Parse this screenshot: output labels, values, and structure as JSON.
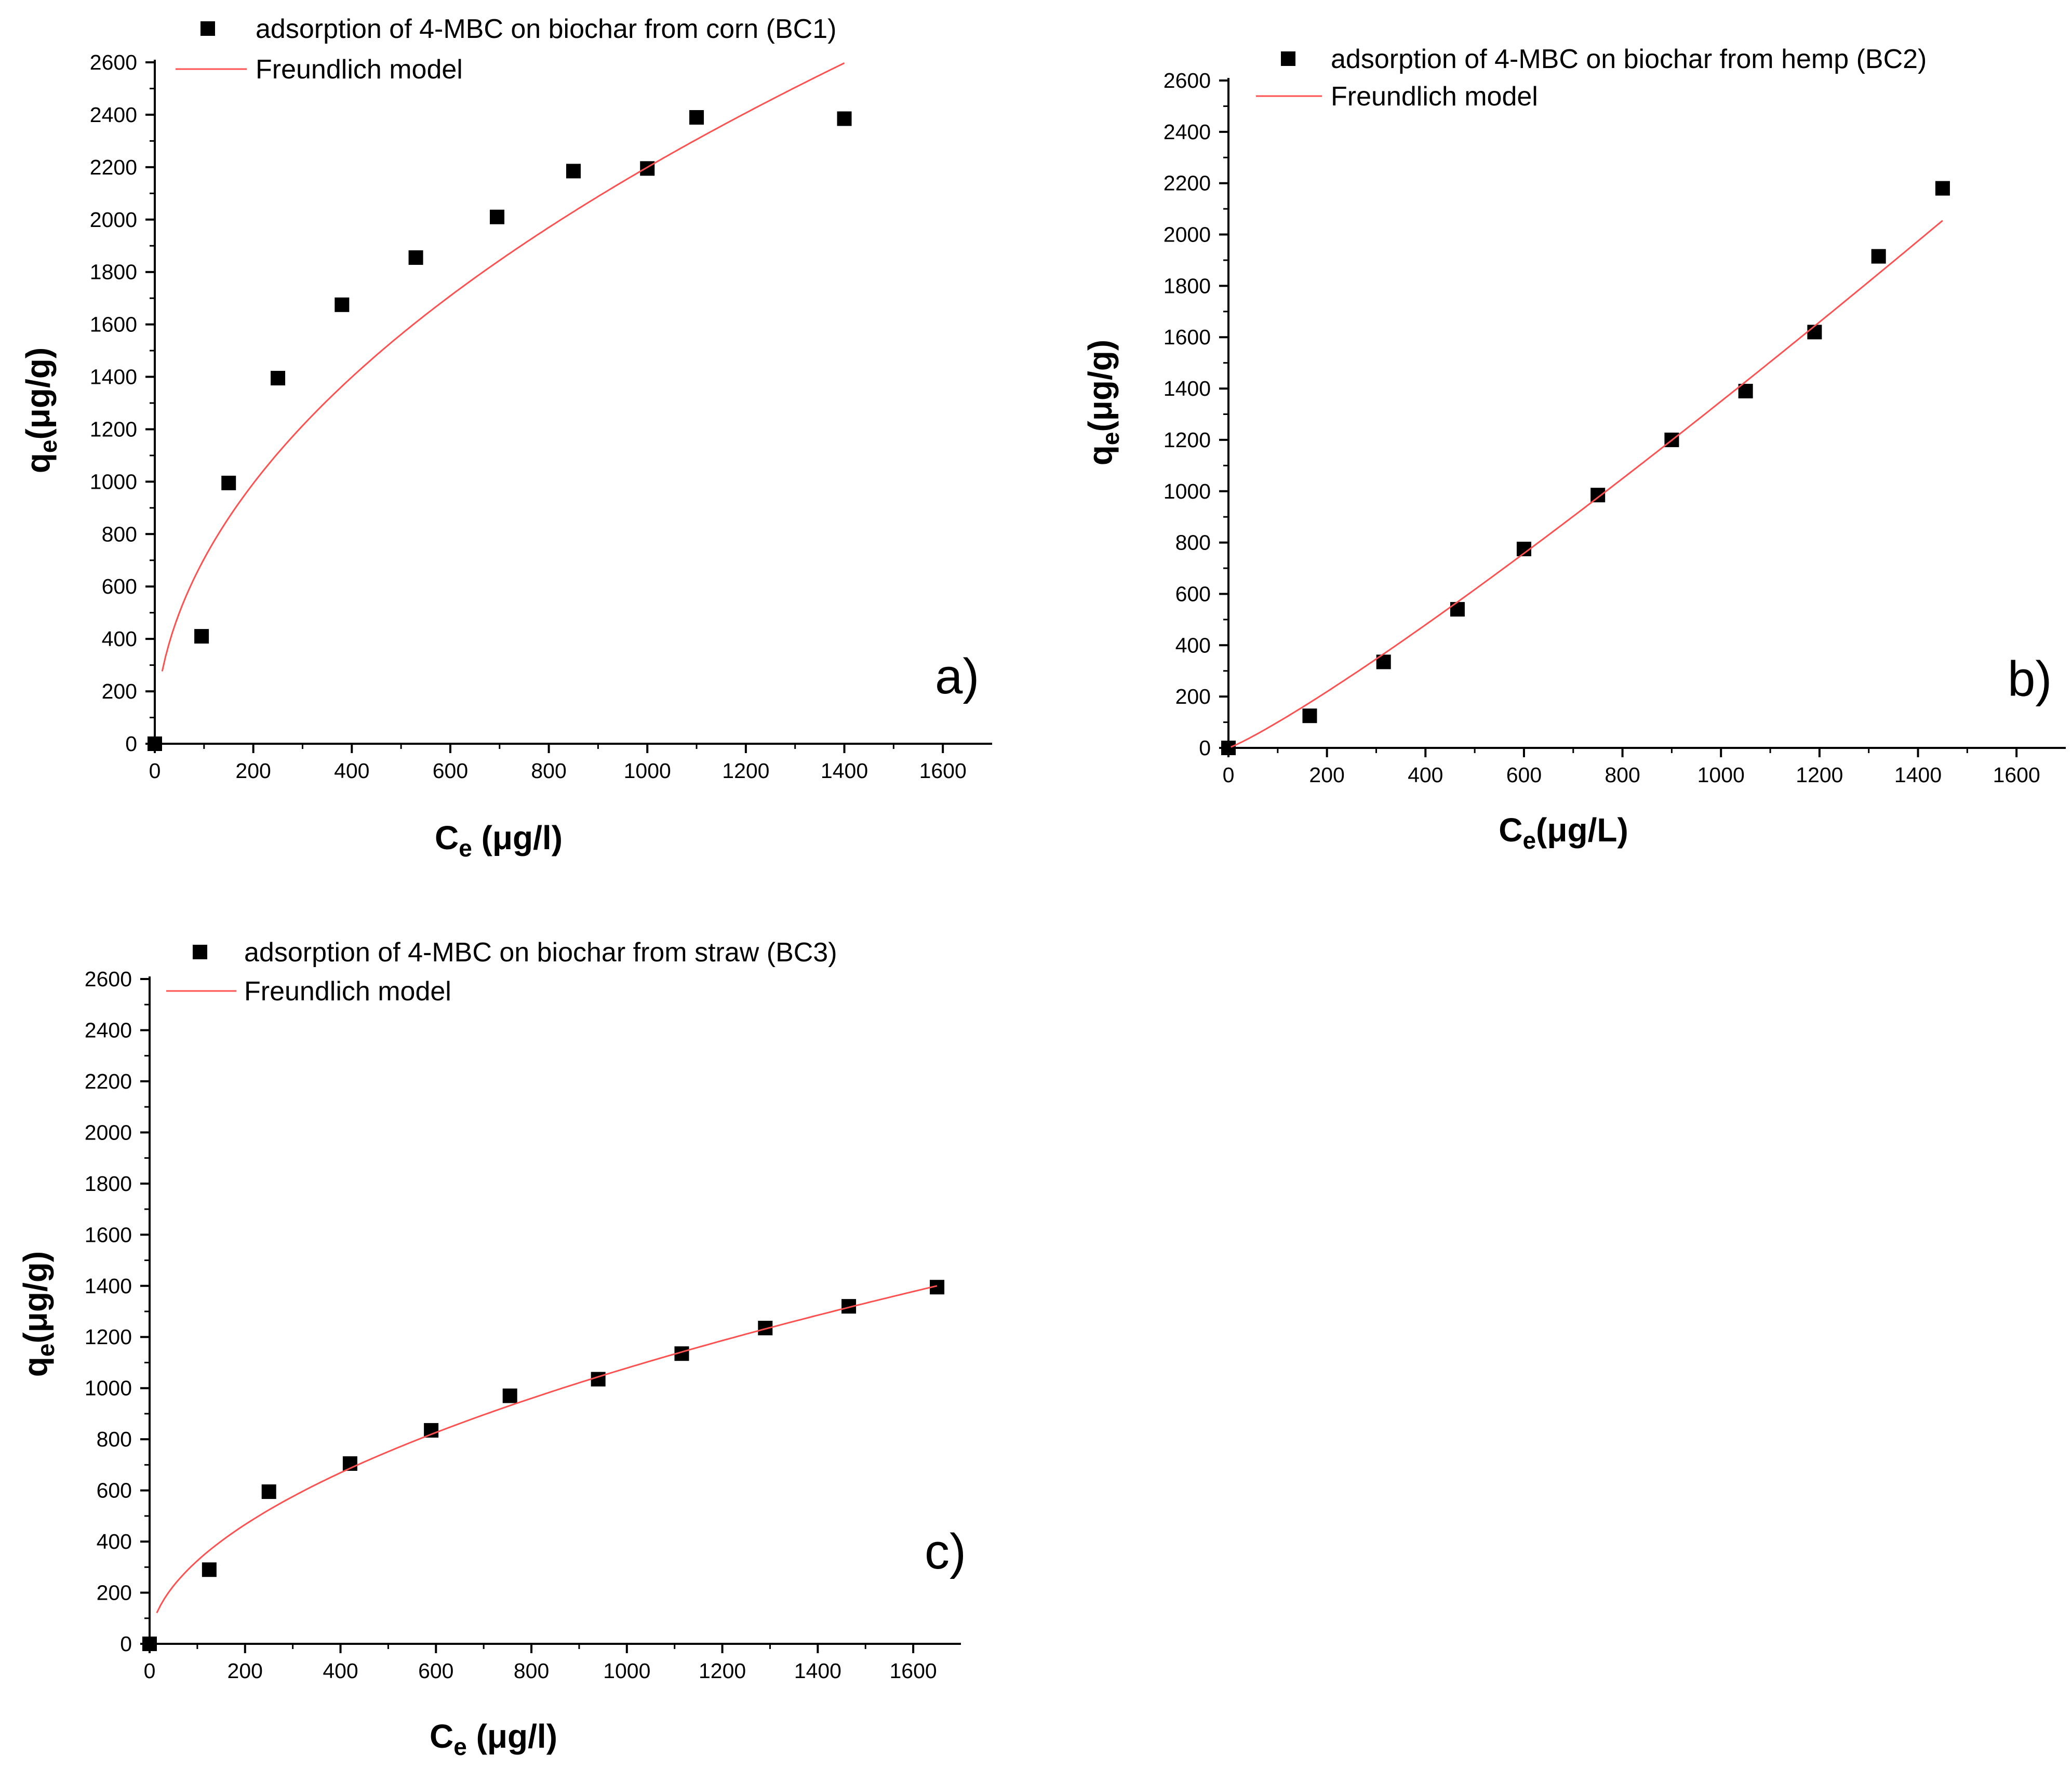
{
  "chart_data": [
    {
      "type": "scatter",
      "panel_label": "a)",
      "xlabel_main": "C",
      "xlabel_sub": "e",
      "xlabel_unit": " (μg/l)",
      "ylabel_main": "q",
      "ylabel_sub": "e",
      "ylabel_unit": "(μg/g)",
      "xlim": [
        0,
        1700
      ],
      "ylim": [
        0,
        2600
      ],
      "xticks": [
        0,
        200,
        400,
        600,
        800,
        1000,
        1200,
        1400,
        1600
      ],
      "yticks": [
        0,
        200,
        400,
        600,
        800,
        1000,
        1200,
        1400,
        1600,
        1800,
        2000,
        2200,
        2400,
        2600
      ],
      "legend_position": "top",
      "series": [
        {
          "name": "adsorption of 4-MBC on biochar from corn (BC1)",
          "kind": "points",
          "color": "#000000",
          "x": [
            0,
            95,
            150,
            250,
            380,
            530,
            695,
            850,
            1000,
            1100,
            1400
          ],
          "y": [
            0,
            410,
            995,
            1395,
            1675,
            1855,
            2010,
            2185,
            2195,
            2390,
            2385
          ]
        },
        {
          "name": "Freundlich model",
          "kind": "line",
          "color": "#ff5050",
          "model": {
            "K": 72.5,
            "n": 0.494
          },
          "x_range": [
            15,
            1400
          ]
        }
      ]
    },
    {
      "type": "scatter",
      "panel_label": "b)",
      "xlabel_main": "C",
      "xlabel_sub": "e",
      "xlabel_unit": "(μg/L)",
      "ylabel_main": "q",
      "ylabel_sub": "e",
      "ylabel_unit": "(μg/g)",
      "xlim": [
        0,
        1700
      ],
      "ylim": [
        0,
        2600
      ],
      "xticks": [
        0,
        200,
        400,
        600,
        800,
        1000,
        1200,
        1400,
        1600
      ],
      "yticks": [
        0,
        200,
        400,
        600,
        800,
        1000,
        1200,
        1400,
        1600,
        1800,
        2000,
        2200,
        2400,
        2600
      ],
      "legend_position": "top",
      "series": [
        {
          "name": "adsorption of 4-MBC on biochar from hemp (BC2)",
          "kind": "points",
          "color": "#000000",
          "x": [
            0,
            165,
            315,
            465,
            600,
            750,
            900,
            1050,
            1190,
            1320,
            1450
          ],
          "y": [
            0,
            125,
            335,
            540,
            775,
            985,
            1200,
            1390,
            1620,
            1915,
            2180
          ]
        },
        {
          "name": "Freundlich model",
          "kind": "line",
          "color": "#ff5050",
          "model": {
            "K": 0.55,
            "n": 1.13
          },
          "x_range": [
            5,
            1450
          ]
        }
      ]
    },
    {
      "type": "scatter",
      "panel_label": "c)",
      "xlabel_main": "C",
      "xlabel_sub": "e",
      "xlabel_unit": " (μg/l)",
      "ylabel_main": "q",
      "ylabel_sub": "e",
      "ylabel_unit": "(μg/g)",
      "xlim": [
        0,
        1700
      ],
      "ylim": [
        0,
        2600
      ],
      "xticks": [
        0,
        200,
        400,
        600,
        800,
        1000,
        1200,
        1400,
        1600
      ],
      "yticks": [
        0,
        200,
        400,
        600,
        800,
        1000,
        1200,
        1400,
        1600,
        1800,
        2000,
        2200,
        2400,
        2600
      ],
      "legend_position": "top",
      "series": [
        {
          "name": "adsorption of 4-MBC on biochar from straw (BC3)",
          "kind": "points",
          "color": "#000000",
          "x": [
            0,
            125,
            250,
            420,
            590,
            755,
            940,
            1115,
            1290,
            1465,
            1650
          ],
          "y": [
            0,
            290,
            595,
            705,
            835,
            970,
            1035,
            1135,
            1235,
            1320,
            1395
          ]
        },
        {
          "name": "Freundlich model",
          "kind": "line",
          "color": "#ff5050",
          "model": {
            "K": 29.5,
            "n": 0.521
          },
          "x_range": [
            15,
            1650
          ]
        }
      ]
    }
  ]
}
